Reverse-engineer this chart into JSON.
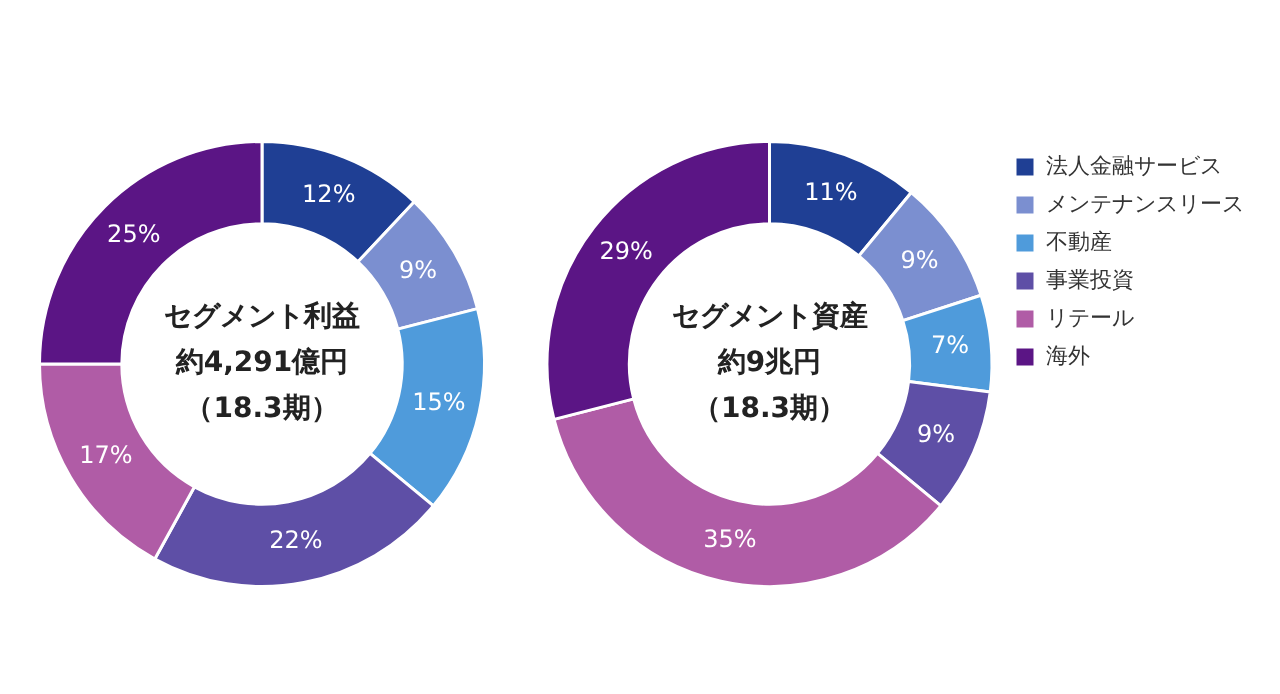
{
  "chart_data": [
    {
      "type": "donut",
      "categories": [
        null,
        null,
        null,
        null,
        null,
        null
      ],
      "values": [
        12,
        9,
        15,
        22,
        17,
        25
      ],
      "value_labels": [
        "12%",
        "9%",
        "15%",
        "22%",
        "17%",
        "25%"
      ],
      "colors": [
        "#1f3f94",
        "#7b8fd0",
        "#4f9bdb",
        "#5e4fa6",
        "#b05ca6",
        "#5b1585"
      ],
      "annotations": [
        "セグメント利益",
        "約4,291億円",
        "（18.3期）"
      ]
    },
    {
      "type": "donut",
      "categories": [
        "法人金融サービス",
        "メンテナンスリース",
        "不動産",
        "事業投資",
        "リテール",
        "海外"
      ],
      "values": [
        11,
        9,
        7,
        9,
        35,
        29
      ],
      "value_labels": [
        "11%",
        "9%",
        "7%",
        "9%",
        "35%",
        "29%"
      ],
      "colors": [
        "#1f3f94",
        "#7b8fd0",
        "#4f9bdb",
        "#5e4fa6",
        "#b05ca6",
        "#5b1585"
      ],
      "annotations": [
        "セグメント資産",
        "約9兆円",
        "（18.3期）"
      ],
      "legend": "right"
    }
  ]
}
